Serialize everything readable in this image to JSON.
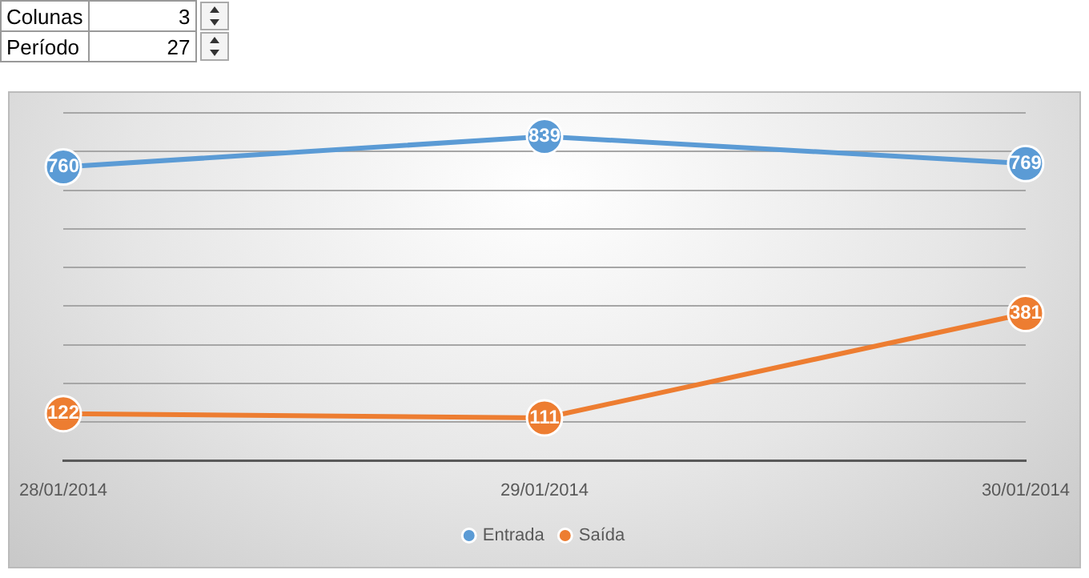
{
  "chart_data": {
    "type": "line",
    "categories": [
      "28/01/2014",
      "29/01/2014",
      "30/01/2014"
    ],
    "series": [
      {
        "name": "Entrada",
        "color": "#5b9bd5",
        "values": [
          760,
          839,
          769
        ]
      },
      {
        "name": "Saída",
        "color": "#ed7d31",
        "values": [
          122,
          111,
          381
        ]
      }
    ],
    "ylim": [
      0,
      900
    ],
    "yticks": [
      {
        "value": 0,
        "label": null
      },
      {
        "value": 100,
        "label": null
      },
      {
        "value": 200,
        "label": null
      },
      {
        "value": 300,
        "label": null
      },
      {
        "value": 400,
        "label": null
      },
      {
        "value": 500,
        "label": null
      },
      {
        "value": 600,
        "label": null
      },
      {
        "value": 700,
        "label": null
      },
      {
        "value": 800,
        "label": null
      },
      {
        "value": 900,
        "label": null
      }
    ],
    "tick_labels": "x",
    "grid": "y",
    "legend": "bottom",
    "marker": "circle",
    "line_style": "solid",
    "data_labels": true,
    "annotations": [
      "Colunas",
      "3",
      "Período",
      "27"
    ]
  }
}
